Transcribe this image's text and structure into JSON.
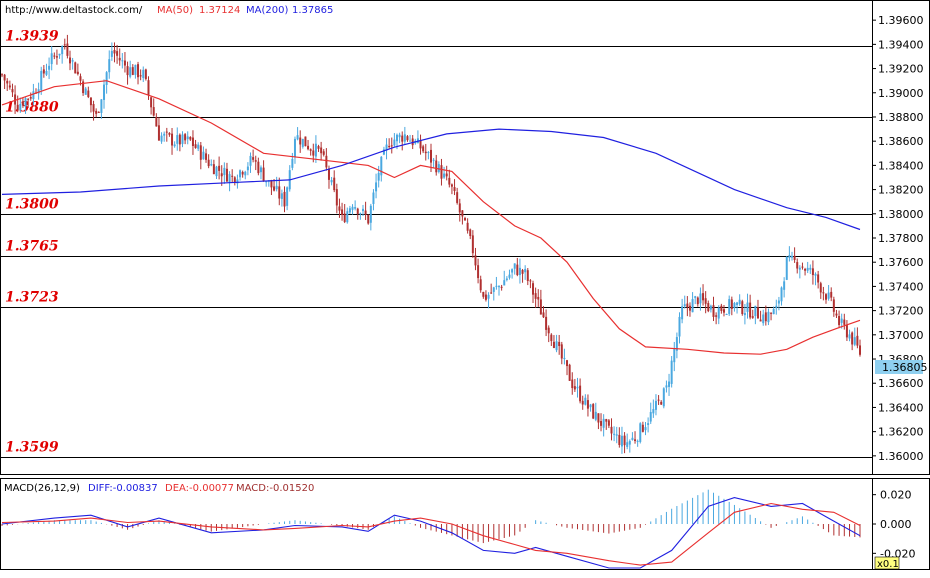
{
  "header": {
    "url": "http://www.deltastock.com/",
    "ma50_label": "MA(50)",
    "ma50_value": "1.37124",
    "ma200_label": "MA(200)",
    "ma200_value": "1.37865"
  },
  "macd_header": {
    "title": "MACD(26,12,9)",
    "diff": "DIFF:-0.00837",
    "dea": "DEA:-0.00077",
    "macd": "MACD:-0.01520"
  },
  "current_price": "1.36805",
  "scale_badge": "x0.1",
  "colors": {
    "up_candle": "#4aa8e0",
    "down_candle": "#b03030",
    "ma50": "#e83030",
    "ma200": "#2020e0",
    "level_text": "#e00000",
    "price_badge": "#8fd0f0"
  },
  "chart_data": [
    {
      "type": "candlestick",
      "ylim": [
        1.3585,
        1.3975
      ],
      "y_ticks": [
        "1.39600",
        "1.39400",
        "1.39200",
        "1.39000",
        "1.38800",
        "1.38600",
        "1.38400",
        "1.38200",
        "1.38000",
        "1.37800",
        "1.37600",
        "1.37400",
        "1.37200",
        "1.37000",
        "1.36800",
        "1.36600",
        "1.36400",
        "1.36200",
        "1.36000"
      ],
      "levels": [
        {
          "value": 1.3939,
          "label": "1.3939"
        },
        {
          "value": 1.388,
          "label": "1.3880"
        },
        {
          "value": 1.38,
          "label": "1.3800"
        },
        {
          "value": 1.3765,
          "label": "1.3765"
        },
        {
          "value": 1.3723,
          "label": "1.3723"
        },
        {
          "value": 1.3599,
          "label": "1.3599"
        }
      ],
      "close_anchors": [
        [
          0,
          1.3915
        ],
        [
          6,
          1.389
        ],
        [
          12,
          1.39
        ],
        [
          18,
          1.3925
        ],
        [
          24,
          1.394
        ],
        [
          30,
          1.391
        ],
        [
          36,
          1.388
        ],
        [
          42,
          1.3935
        ],
        [
          48,
          1.392
        ],
        [
          54,
          1.3915
        ],
        [
          60,
          1.3865
        ],
        [
          66,
          1.386
        ],
        [
          72,
          1.386
        ],
        [
          80,
          1.384
        ],
        [
          88,
          1.383
        ],
        [
          96,
          1.3845
        ],
        [
          102,
          1.3825
        ],
        [
          108,
          1.381
        ],
        [
          112,
          1.3865
        ],
        [
          118,
          1.3855
        ],
        [
          122,
          1.385
        ],
        [
          130,
          1.3795
        ],
        [
          134,
          1.381
        ],
        [
          140,
          1.3795
        ],
        [
          144,
          1.3835
        ],
        [
          148,
          1.386
        ],
        [
          154,
          1.3865
        ],
        [
          160,
          1.3855
        ],
        [
          166,
          1.384
        ],
        [
          172,
          1.382
        ],
        [
          180,
          1.377
        ],
        [
          184,
          1.373
        ],
        [
          190,
          1.374
        ],
        [
          196,
          1.3755
        ],
        [
          200,
          1.375
        ],
        [
          206,
          1.372
        ],
        [
          212,
          1.369
        ],
        [
          218,
          1.366
        ],
        [
          224,
          1.364
        ],
        [
          232,
          1.362
        ],
        [
          238,
          1.361
        ],
        [
          242,
          1.3615
        ],
        [
          250,
          1.364
        ],
        [
          254,
          1.3655
        ],
        [
          260,
          1.372
        ],
        [
          266,
          1.373
        ],
        [
          272,
          1.372
        ],
        [
          280,
          1.3725
        ],
        [
          286,
          1.372
        ],
        [
          292,
          1.3715
        ],
        [
          296,
          1.372
        ],
        [
          300,
          1.376
        ],
        [
          304,
          1.376
        ],
        [
          310,
          1.375
        ],
        [
          316,
          1.373
        ],
        [
          320,
          1.371
        ],
        [
          324,
          1.37
        ],
        [
          328,
          1.3685
        ]
      ],
      "ma50_points": [
        [
          0,
          1.389
        ],
        [
          20,
          1.3905
        ],
        [
          40,
          1.391
        ],
        [
          60,
          1.3895
        ],
        [
          80,
          1.3875
        ],
        [
          100,
          1.385
        ],
        [
          120,
          1.3845
        ],
        [
          140,
          1.384
        ],
        [
          150,
          1.383
        ],
        [
          160,
          1.384
        ],
        [
          172,
          1.3835
        ],
        [
          184,
          1.381
        ],
        [
          196,
          1.379
        ],
        [
          206,
          1.378
        ],
        [
          216,
          1.376
        ],
        [
          226,
          1.373
        ],
        [
          236,
          1.3705
        ],
        [
          246,
          1.369
        ],
        [
          262,
          1.3688
        ],
        [
          276,
          1.3685
        ],
        [
          290,
          1.3684
        ],
        [
          300,
          1.3688
        ],
        [
          310,
          1.3698
        ],
        [
          320,
          1.3706
        ],
        [
          328,
          1.3712
        ]
      ],
      "ma200_points": [
        [
          0,
          1.3816
        ],
        [
          30,
          1.3818
        ],
        [
          60,
          1.3823
        ],
        [
          90,
          1.3826
        ],
        [
          110,
          1.3828
        ],
        [
          130,
          1.384
        ],
        [
          150,
          1.3855
        ],
        [
          170,
          1.3866
        ],
        [
          190,
          1.387
        ],
        [
          210,
          1.3868
        ],
        [
          230,
          1.3863
        ],
        [
          250,
          1.385
        ],
        [
          265,
          1.3835
        ],
        [
          280,
          1.382
        ],
        [
          300,
          1.3805
        ],
        [
          315,
          1.3797
        ],
        [
          328,
          1.3787
        ]
      ]
    },
    {
      "type": "line",
      "title": "MACD(26,12,9)",
      "ylim": [
        -0.03,
        0.03
      ],
      "y_ticks": [
        "0.020",
        "0.000",
        "-0.020"
      ],
      "series": [
        {
          "name": "DIFF",
          "color": "#2020e0",
          "points": [
            [
              0,
              0.0
            ],
            [
              20,
              0.004
            ],
            [
              34,
              0.006
            ],
            [
              48,
              -0.002
            ],
            [
              60,
              0.004
            ],
            [
              80,
              -0.006
            ],
            [
              100,
              -0.004
            ],
            [
              112,
              -0.001
            ],
            [
              130,
              -0.002
            ],
            [
              140,
              -0.005
            ],
            [
              150,
              0.006
            ],
            [
              160,
              0.002
            ],
            [
              172,
              -0.006
            ],
            [
              184,
              -0.018
            ],
            [
              196,
              -0.02
            ],
            [
              204,
              -0.016
            ],
            [
              216,
              -0.022
            ],
            [
              232,
              -0.03
            ],
            [
              244,
              -0.03
            ],
            [
              256,
              -0.018
            ],
            [
              270,
              0.012
            ],
            [
              280,
              0.018
            ],
            [
              294,
              0.012
            ],
            [
              306,
              0.014
            ],
            [
              318,
              0.002
            ],
            [
              328,
              -0.008
            ]
          ]
        },
        {
          "name": "DEA",
          "color": "#e83030",
          "points": [
            [
              0,
              0.001
            ],
            [
              20,
              0.002
            ],
            [
              34,
              0.004
            ],
            [
              48,
              0.001
            ],
            [
              60,
              0.002
            ],
            [
              80,
              -0.002
            ],
            [
              100,
              -0.004
            ],
            [
              112,
              -0.003
            ],
            [
              130,
              -0.001
            ],
            [
              140,
              -0.002
            ],
            [
              150,
              0.002
            ],
            [
              160,
              0.004
            ],
            [
              172,
              0.0
            ],
            [
              184,
              -0.008
            ],
            [
              196,
              -0.014
            ],
            [
              204,
              -0.018
            ],
            [
              216,
              -0.02
            ],
            [
              232,
              -0.025
            ],
            [
              244,
              -0.028
            ],
            [
              256,
              -0.026
            ],
            [
              270,
              -0.006
            ],
            [
              280,
              0.008
            ],
            [
              294,
              0.014
            ],
            [
              306,
              0.01
            ],
            [
              318,
              0.008
            ],
            [
              328,
              -0.001
            ]
          ]
        }
      ]
    }
  ]
}
